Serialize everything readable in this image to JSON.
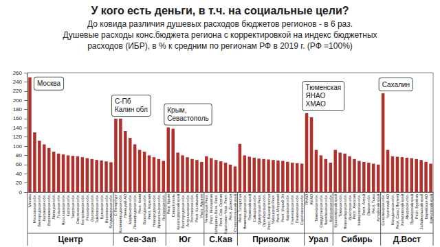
{
  "chart_data": {
    "type": "bar",
    "title": "У кого есть деньги, в т.ч. на социальные цели?",
    "subtitle": [
      "До ковида различия душевых расходов бюджетов регионов - в 6 раз.",
      "Душевые расходы конс.бюджета региона с корректировкой на индекс бюджетных",
      "расходов (ИБР), в % к средним по регионам РФ в 2019 г. (РФ =100%)"
    ],
    "categories": [
      "Москва",
      "Московская обл.",
      "Белгородская обл.",
      "Калужская обл.",
      "Воронежская обл.",
      "Липецкая обл.",
      "Тульская обл.",
      "Ярославская обл.",
      "Курская обл.",
      "Тверская обл.",
      "Смоленская обл.",
      "Костромская обл.",
      "Рязанская обл.",
      "Орловская обл.",
      "Тамбовская обл.",
      "Брянская обл.",
      "Ивановская обл.",
      "Владимирская обл.",
      "С-Петербург",
      "Калининградская обл.",
      "Ненецкий АО",
      "Мурманская обл.",
      "Ленинградская обл.",
      "Респ. Коми",
      "Вологодская обл.",
      "Респ. Карелия",
      "Новгородская обл.",
      "Архангельская обл.",
      "Псковская обл.",
      "Респ. Крым",
      "Севастополь",
      "Краснодарский край",
      "Волгоградская обл.",
      "Астраханская обл.",
      "Ростовская обл.",
      "Респ. Калмыкия",
      "Респ. Адыгея",
      "Чеченская Респ.",
      "Респ. Ингушетия",
      "Кабардино-Балк. Респ.",
      "Респ. Сев. Осетия",
      "Карачаево-Черк. Респ.",
      "Респ. Дагестан",
      "Ставропольский край",
      "Респ. Татарстан",
      "Нижегородская обл.",
      "Пермский край",
      "Самарская обл.",
      "Удмуртская Респ.",
      "Оренбургская обл.",
      "Респ. Башкортостан",
      "Чувашская Респ.",
      "Респ. Мордовия",
      "Респ. Марий Эл",
      "Кировская обл.",
      "Ульяновская обл.",
      "Пензенская обл.",
      "Саратовская обл.",
      "ЯНАО",
      "ХМАО",
      "Тюменская обл.",
      "Свердловская обл.",
      "Челябинская обл.",
      "Курганская обл.",
      "Красноярский край",
      "Томская обл.",
      "Новосибирская обл.",
      "Иркутская обл.",
      "Респ. Хакасия",
      "Кемеровская обл.",
      "Респ. Алтай",
      "Омская обл.",
      "Респ. Тыва",
      "Алтайский край",
      "Сахалинская обл.",
      "Чукотский АО",
      "Магаданская обл.",
      "Респ. Саха (Якутия)",
      "Хабаровский край",
      "Амурская обл.",
      "Приморский край",
      "Респ. Бурятия",
      "Забайкальский край",
      "Еврейская АО",
      "Камчатский край"
    ],
    "values": [
      250,
      130,
      112,
      104,
      96,
      88,
      84,
      82,
      80,
      79,
      78,
      76,
      74,
      72,
      70,
      69,
      67,
      65,
      160,
      160,
      133,
      118,
      104,
      92,
      88,
      80,
      76,
      72,
      68,
      141,
      138,
      86,
      80,
      76,
      72,
      70,
      66,
      78,
      74,
      70,
      67,
      64,
      60,
      56,
      105,
      80,
      77,
      75,
      73,
      72,
      71,
      70,
      69,
      68,
      66,
      64,
      63,
      62,
      172,
      163,
      92,
      80,
      72,
      64,
      92,
      86,
      84,
      78,
      72,
      68,
      66,
      64,
      62,
      60,
      215,
      92,
      78,
      77,
      76,
      75,
      74,
      72,
      70,
      66,
      62
    ],
    "color": "#b0302c",
    "ylim": [
      0,
      260
    ],
    "yticks": [
      0,
      20,
      40,
      60,
      80,
      100,
      120,
      140,
      160,
      180,
      200,
      220,
      240,
      260
    ],
    "grid": false,
    "groups": [
      {
        "name": "Центр",
        "from": "Москва"
      },
      {
        "name": "Сев-Зап",
        "from": "С-Петербург"
      },
      {
        "name": "Юг",
        "from": "Респ. Крым"
      },
      {
        "name": "С.Кав",
        "from": "Чеченская Респ."
      },
      {
        "name": "Приволж",
        "from": "Респ. Татарстан"
      },
      {
        "name": "Урал",
        "from": "ЯНАО"
      },
      {
        "name": "Сибирь",
        "from": "Красноярский край"
      },
      {
        "name": "Д.Вост",
        "from": "Сахалинская обл."
      }
    ],
    "annotations": [
      {
        "text": "Москва",
        "target": "Москва"
      },
      {
        "text": "С-Пб\nКалин обл",
        "target": "С-Петербург"
      },
      {
        "text": "Крым,\nСевастополь",
        "target": "Респ. Крым"
      },
      {
        "text": "Тюменская\nЯНАО\nХМАО",
        "target": "ЯНАО"
      },
      {
        "text": "Сахалин",
        "target": "Сахалинская обл."
      }
    ]
  }
}
